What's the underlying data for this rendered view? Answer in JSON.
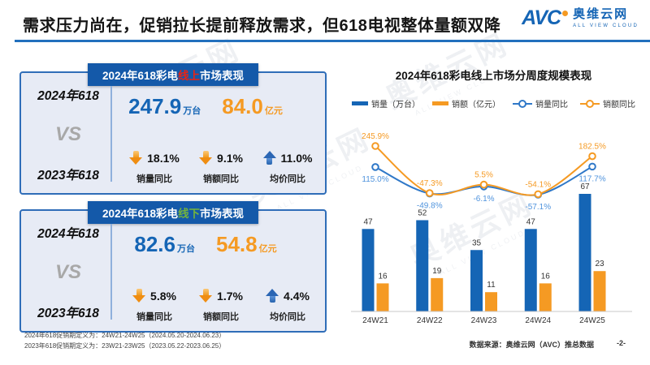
{
  "header": {
    "title": "需求压力尚在，促销拉长提前释放需求，但618电视整体量额双降",
    "logo": {
      "mark": "AVC",
      "name": "奥维云网",
      "tagline": "ALL VIEW CLOUD"
    }
  },
  "watermark": {
    "name": "奥维云网",
    "tagline": "ALL VIEW CLOUD"
  },
  "panels": [
    {
      "tab": {
        "prefix": "2024年618彩电",
        "channel": "线上",
        "suffix": "市场表现"
      },
      "left": {
        "year_top": "2024年618",
        "vs": "VS",
        "year_bottom": "2023年618"
      },
      "volume": {
        "value": "247.9",
        "unit": "万台"
      },
      "amount": {
        "value": "84.0",
        "unit": "亿元"
      },
      "metrics": [
        {
          "direction": "down",
          "value": "18.1%",
          "label": "销量同比"
        },
        {
          "direction": "down",
          "value": "9.1%",
          "label": "销额同比"
        },
        {
          "direction": "up",
          "value": "11.0%",
          "label": "均价同比"
        }
      ]
    },
    {
      "tab": {
        "prefix": "2024年618彩电",
        "channel": "线下",
        "suffix": "市场表现"
      },
      "left": {
        "year_top": "2024年618",
        "vs": "VS",
        "year_bottom": "2023年618"
      },
      "volume": {
        "value": "82.6",
        "unit": "万台"
      },
      "amount": {
        "value": "54.8",
        "unit": "亿元"
      },
      "metrics": [
        {
          "direction": "down",
          "value": "5.8%",
          "label": "销量同比"
        },
        {
          "direction": "down",
          "value": "1.7%",
          "label": "销额同比"
        },
        {
          "direction": "up",
          "value": "4.4%",
          "label": "均价同比"
        }
      ]
    }
  ],
  "chart_data": {
    "type": "bar",
    "title": "2024年618彩电线上市场分周度规模表现",
    "categories": [
      "24W21",
      "24W22",
      "24W23",
      "24W24",
      "24W25"
    ],
    "series": [
      {
        "name": "销量（万台）",
        "kind": "bar",
        "color": "#1565b5",
        "values": [
          47,
          52,
          35,
          47,
          67
        ]
      },
      {
        "name": "销额（亿元）",
        "kind": "bar",
        "color": "#f59a23",
        "values": [
          16,
          19,
          11,
          16,
          23
        ]
      },
      {
        "name": "销量同比",
        "kind": "line",
        "color": "#2f78c8",
        "label_color": "#4f93dd",
        "values": [
          115.0,
          -49.8,
          -6.1,
          -57.1,
          117.7
        ],
        "point_labels": [
          "115.0%",
          "-49.8%",
          "-6.1%",
          "-57.1%",
          "117.7%"
        ],
        "label_side": "below"
      },
      {
        "name": "销额同比",
        "kind": "line",
        "color": "#f59a23",
        "label_color": "#f59a23",
        "values": [
          245.9,
          -47.3,
          5.5,
          -54.1,
          182.5
        ],
        "point_labels": [
          "245.9%",
          "-47.3%",
          "5.5%",
          "-54.1%",
          "182.5%"
        ],
        "label_side": "above"
      }
    ],
    "legend_position": "top",
    "grid": false,
    "xlabel": "",
    "ylabel": ""
  },
  "footnotes": [
    "2024年618促销期定义为：24W21-24W25（2024.05.20-2024.06.23）",
    "2023年618促销期定义为：23W21-23W25（2023.05.22-2023.06.25）"
  ],
  "footer": {
    "source": "数据来源：奥维云网（AVC）推总数据",
    "page": "-2-"
  },
  "colors": {
    "primary_blue": "#1565b5",
    "accent_orange": "#f59a23",
    "online_red": "#ee2211",
    "offline_green": "#74b43c",
    "tab_blue": "#1459a9",
    "header_rule_blue": "#2270bd"
  }
}
